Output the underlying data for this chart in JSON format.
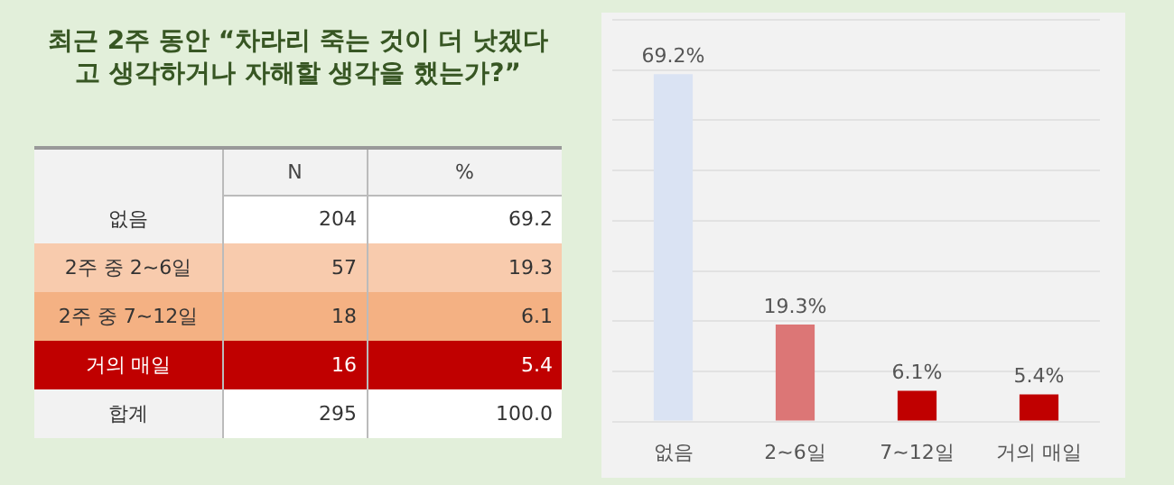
{
  "chart_data": [
    {
      "type": "other",
      "title": "최근 2주 동안 “차라리 죽는 것이 더 낫겠다고 생각하거나 자해할 생각을 했는가?”",
      "categories": [
        "없음",
        "2주 중 2~6일",
        "2주 중 7~12일",
        "거의 매일"
      ],
      "data_labels": true,
      "totals": [
        "295",
        "100.0"
      ],
      "annotations": [
        "합계"
      ],
      "series": [
        {
          "name": "N",
          "values": [
            204,
            57,
            18,
            16
          ],
          "colors": [
            "#ffffff",
            "#f8cbad",
            "#f4b183",
            "#c00000"
          ]
        },
        {
          "name": "%",
          "values": [
            69.2,
            19.3,
            6.1,
            5.4
          ],
          "colors": [
            "#ffffff",
            "#f8cbad",
            "#f4b183",
            "#c00000"
          ]
        }
      ]
    },
    {
      "type": "bar",
      "categories": [
        "없음",
        "2~6일",
        "7~12일",
        "거의 매일"
      ],
      "values": [
        69.2,
        19.3,
        6.1,
        5.4
      ],
      "colors": [
        "#dae3f3",
        "#dc7676",
        "#c00000",
        "#c00000"
      ],
      "value_labels": [
        "69.2%",
        "19.3%",
        "6.1%",
        "5.4%"
      ],
      "ylim": [
        0,
        80
      ],
      "yticks": [
        0,
        10,
        20,
        30,
        40,
        50,
        60,
        70,
        80
      ],
      "grid": "y",
      "tick_labels": "x"
    }
  ]
}
